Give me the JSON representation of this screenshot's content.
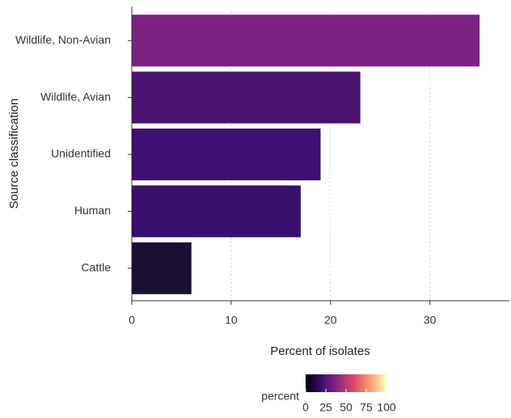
{
  "chart_data": {
    "type": "bar",
    "orientation": "horizontal",
    "x_label": "Percent of isolates",
    "y_label": "Source classification",
    "categories": [
      "Wildlife, Non-Avian",
      "Wildlife, Avian",
      "Unidentified",
      "Human",
      "Cattle"
    ],
    "values": [
      35,
      23,
      19,
      17,
      6
    ],
    "colors": [
      "#7b2382",
      "#4b1270",
      "#3e0f72",
      "#38106b",
      "#1b0f33"
    ],
    "xlim": [
      0,
      38
    ],
    "xticks": [
      0,
      10,
      20,
      30
    ],
    "grid": true,
    "colorbar": {
      "title": "percent",
      "lim": [
        0,
        100
      ],
      "ticks": [
        0,
        25,
        50,
        75,
        100
      ],
      "colors": [
        "#000004",
        "#3b0f70",
        "#8c2981",
        "#de4968",
        "#fe9f6d",
        "#fcfdbf"
      ]
    }
  }
}
